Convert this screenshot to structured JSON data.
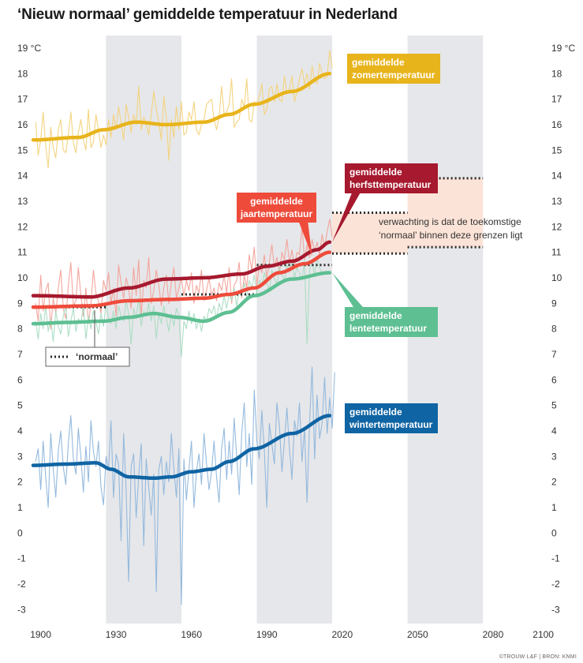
{
  "chart_data": {
    "type": "line",
    "title": "‘Nieuw normaal’ gemiddelde temperatuur in Nederland",
    "credit": "©TROUW L&F | BRON: KNMI",
    "xlim": [
      1897,
      2102
    ],
    "ylim": [
      -3.3,
      19.4
    ],
    "x_ticks": [
      "1900",
      "1930",
      "1960",
      "1990",
      "2020",
      "2050",
      "2080",
      "2100"
    ],
    "x_tick_values": [
      1900,
      1930,
      1960,
      1990,
      2020,
      2050,
      2080,
      2100
    ],
    "y_tick_values": [
      -3,
      -2,
      -1,
      0,
      1,
      2,
      3,
      4,
      5,
      6,
      7,
      8,
      9,
      10,
      11,
      12,
      13,
      14,
      15,
      16,
      17,
      18,
      19
    ],
    "y_ticks": [
      "-3",
      "-2",
      "-1",
      "0",
      "1",
      "2",
      "3",
      "4",
      "5",
      "6",
      "7",
      "8",
      "9",
      "10",
      "11",
      "12",
      "13",
      "14",
      "15",
      "16",
      "17",
      "18",
      "19 °C"
    ],
    "grey_bands": [
      [
        1926,
        1956
      ],
      [
        1986,
        2016
      ],
      [
        2046,
        2076
      ]
    ],
    "series": [
      {
        "name": "gemiddelde zomertemperatuur",
        "label_lines": [
          "gemiddelde",
          "zomertemperatuur"
        ],
        "color": "#e8b41c",
        "light_color": "#f3d27a",
        "smooth_x": [
          1897,
          1915,
          1925,
          1938,
          1950,
          1965,
          1975,
          1985,
          2000,
          2015
        ],
        "smooth_y": [
          15.4,
          15.5,
          15.8,
          16.1,
          16.0,
          16.1,
          16.4,
          16.8,
          17.3,
          18.0
        ],
        "annual_y": [
          16.1,
          14.8,
          15.4,
          16.5,
          15.2,
          14.3,
          15.9,
          15.1,
          14.7,
          15.8,
          16.2,
          15.0,
          14.9,
          15.6,
          16.5,
          15.3,
          14.9,
          15.7,
          16.2,
          15.4,
          15.0,
          16.6,
          15.1,
          15.3,
          16.4,
          15.8,
          15.1,
          15.6,
          15.2,
          16.2,
          15.5,
          16.4,
          15.8,
          16.7,
          16.1,
          15.4,
          16.8,
          16.3,
          15.7,
          16.4,
          16.0,
          17.5,
          15.8,
          16.3,
          16.0,
          15.6,
          16.4,
          17.3,
          16.6,
          16.1,
          15.4,
          17.1,
          16.3,
          14.6,
          16.2,
          15.5,
          16.7,
          15.8,
          16.9,
          15.6,
          15.7,
          16.5,
          16.2,
          16.9,
          15.8,
          15.6,
          16.0,
          16.2,
          16.8,
          16.9,
          17.0,
          16.2,
          15.8,
          16.3,
          17.5,
          16.4,
          16.5,
          16.8,
          17.8,
          15.9,
          16.1,
          16.2,
          17.0,
          16.7,
          17.8,
          16.2,
          16.1,
          16.9,
          16.8,
          17.1,
          17.6,
          16.4,
          16.6,
          17.4,
          17.5,
          16.9,
          17.6,
          17.0,
          16.9,
          17.9,
          17.2,
          17.4,
          17.9,
          16.9,
          17.3,
          17.8,
          18.2,
          17.6,
          18.0,
          17.4,
          18.3,
          17.7,
          17.6,
          18.4,
          18.0,
          17.8,
          17.9,
          18.9,
          18.2
        ]
      },
      {
        "name": "gemiddelde herfsttemperatuur",
        "label_lines": [
          "gemiddelde",
          "herfsttemperatuur"
        ],
        "color": "#a6192e",
        "light_color": "#d48a94",
        "smooth_x": [
          1897,
          1920,
          1935,
          1950,
          1965,
          1980,
          1990,
          2000,
          2010,
          2015
        ],
        "smooth_y": [
          9.3,
          9.25,
          9.6,
          9.95,
          10.0,
          10.15,
          10.45,
          10.65,
          11.1,
          11.4
        ],
        "annual_y": []
      },
      {
        "name": "gemiddelde jaartemperatuur",
        "label_lines": [
          "gemiddelde",
          "jaartemperatuur"
        ],
        "color": "#ee4b3b",
        "light_color": "#f3a198",
        "smooth_x": [
          1897,
          1920,
          1935,
          1950,
          1965,
          1975,
          1985,
          1995,
          2005,
          2015
        ],
        "smooth_y": [
          8.85,
          8.9,
          9.1,
          9.15,
          9.2,
          9.35,
          9.6,
          10.2,
          10.55,
          11.0
        ],
        "annual_y": [
          9.0,
          8.3,
          10.1,
          8.7,
          9.5,
          9.8,
          8.0,
          9.2,
          8.6,
          9.6,
          10.3,
          8.8,
          8.4,
          9.7,
          10.6,
          8.9,
          9.1,
          10.4,
          9.3,
          8.5,
          9.6,
          8.2,
          9.0,
          10.3,
          9.4,
          9.1,
          8.6,
          9.9,
          9.5,
          10.2,
          9.0,
          9.6,
          8.5,
          10.5,
          9.8,
          9.2,
          10.0,
          9.6,
          8.8,
          10.4,
          9.3,
          10.7,
          8.5,
          9.9,
          9.6,
          10.8,
          9.0,
          9.5,
          10.3,
          9.7,
          8.9,
          9.6,
          10.1,
          9.0,
          9.8,
          10.4,
          9.2,
          9.6,
          10.0,
          9.3,
          9.9,
          9.5,
          10.2,
          9.0,
          9.7,
          9.4,
          10.3,
          9.1,
          9.5,
          10.0,
          9.3,
          9.6,
          9.1,
          9.8,
          9.5,
          10.1,
          9.4,
          10.4,
          9.0,
          9.7,
          9.9,
          10.6,
          9.2,
          10.1,
          9.6,
          10.9,
          10.3,
          11.2,
          9.7,
          10.5,
          10.2,
          10.9,
          10.0,
          10.6,
          11.3,
          10.4,
          10.8,
          10.2,
          11.0,
          10.7,
          11.5,
          10.6,
          11.1,
          10.4,
          11.0,
          10.9,
          12.0,
          10.7,
          11.3,
          10.8,
          11.5,
          11.0,
          11.4,
          10.9,
          11.7,
          11.2,
          11.8,
          12.3,
          11.6
        ]
      },
      {
        "name": "gemiddelde lentetemperatuur",
        "label_lines": [
          "gemiddelde",
          "lentetemperatuur"
        ],
        "color": "#5dbf92",
        "light_color": "#a9dcc2",
        "smooth_x": [
          1897,
          1910,
          1925,
          1935,
          1945,
          1955,
          1965,
          1975,
          1985,
          2000,
          2015
        ],
        "smooth_y": [
          8.2,
          8.25,
          8.3,
          8.45,
          8.6,
          8.45,
          8.3,
          8.65,
          9.3,
          9.95,
          10.2
        ],
        "annual_y": [
          8.3,
          7.6,
          8.6,
          8.0,
          8.9,
          7.9,
          8.4,
          7.5,
          8.7,
          8.1,
          7.8,
          8.5,
          8.9,
          7.7,
          8.3,
          8.8,
          7.9,
          8.4,
          8.2,
          8.9,
          7.6,
          8.5,
          8.0,
          8.7,
          8.3,
          7.8,
          8.6,
          8.1,
          9.0,
          8.4,
          8.2,
          8.7,
          8.0,
          8.9,
          8.5,
          8.3,
          9.1,
          8.6,
          7.4,
          8.8,
          8.4,
          9.2,
          8.1,
          8.7,
          8.5,
          9.0,
          8.3,
          8.9,
          7.6,
          8.6,
          8.2,
          8.9,
          8.4,
          7.9,
          8.6,
          8.1,
          8.8,
          8.5,
          6.9,
          8.3,
          8.0,
          8.7,
          8.2,
          8.6,
          8.0,
          8.4,
          7.9,
          8.5,
          8.3,
          8.8,
          8.6,
          8.9,
          8.4,
          9.0,
          8.7,
          9.3,
          8.8,
          9.4,
          9.1,
          9.6,
          8.9,
          9.5,
          9.3,
          9.8,
          9.2,
          9.9,
          9.6,
          10.1,
          9.4,
          9.9,
          9.7,
          10.2,
          9.8,
          9.5,
          10.3,
          10.0,
          9.7,
          10.4,
          10.1,
          9.9,
          10.5,
          10.2,
          10.6,
          10.0,
          10.4,
          10.2,
          9.9,
          10.7,
          7.4,
          10.3,
          10.6,
          10.1,
          10.8,
          10.4,
          10.2
        ]
      },
      {
        "name": "gemiddelde wintertemperatuur",
        "label_lines": [
          "gemiddelde",
          "wintertemperatuur"
        ],
        "color": "#0f64a3",
        "light_color": "#8eb6dc",
        "smooth_x": [
          1897,
          1910,
          1922,
          1928,
          1935,
          1945,
          1952,
          1960,
          1968,
          1975,
          1985,
          2000,
          2015
        ],
        "smooth_y": [
          2.65,
          2.7,
          2.75,
          2.5,
          2.2,
          2.15,
          2.2,
          2.4,
          2.5,
          2.8,
          3.3,
          3.9,
          4.6
        ],
        "annual_y": [
          2.8,
          3.3,
          1.7,
          3.6,
          2.2,
          1.0,
          3.9,
          2.5,
          1.4,
          3.2,
          4.0,
          2.6,
          1.9,
          3.5,
          4.6,
          2.9,
          2.3,
          4.1,
          3.0,
          1.6,
          3.4,
          2.0,
          4.4,
          3.2,
          2.6,
          3.6,
          1.8,
          1.1,
          3.0,
          2.5,
          4.4,
          1.4,
          3.1,
          2.7,
          -0.3,
          3.9,
          1.7,
          -1.9,
          2.6,
          3.1,
          0.6,
          2.2,
          3.5,
          -0.5,
          2.9,
          1.8,
          0.7,
          2.3,
          -2.3,
          2.5,
          3.0,
          1.5,
          2.8,
          2.0,
          3.9,
          2.5,
          1.4,
          3.3,
          -2.8,
          2.9,
          1.3,
          2.5,
          3.6,
          1.0,
          2.4,
          3.1,
          1.9,
          3.9,
          2.7,
          1.7,
          2.4,
          3.6,
          2.2,
          1.2,
          3.3,
          4.1,
          2.1,
          3.6,
          2.3,
          4.5,
          3.0,
          1.5,
          3.9,
          5.1,
          2.6,
          3.9,
          1.9,
          5.6,
          3.6,
          2.9,
          4.8,
          3.2,
          1.0,
          4.3,
          3.5,
          2.7,
          5.1,
          4.2,
          2.4,
          3.6,
          4.9,
          3.3,
          2.1,
          4.4,
          3.8,
          5.1,
          2.8,
          4.1,
          1.2,
          4.3,
          6.5,
          2.9,
          5.4,
          3.7,
          4.3,
          6.1,
          3.9,
          5.3,
          4.1,
          6.3
        ]
      }
    ],
    "normaal": {
      "legend_label": "‘normaal’",
      "segments": [
        {
          "x": [
            1897,
            1926
          ],
          "y": 8.85
        },
        {
          "x": [
            1956,
            1986
          ],
          "y": 9.35
        },
        {
          "x": [
            1986,
            2016
          ],
          "y": 10.5
        }
      ]
    },
    "forecast": {
      "text_lines": [
        "verwachting is dat de toekomstige",
        "‘normaal’ binnen deze grenzen ligt"
      ],
      "boxes": [
        {
          "x": [
            2016,
            2046
          ],
          "y": [
            10.95,
            12.55
          ]
        },
        {
          "x": [
            2046,
            2076
          ],
          "y": [
            11.2,
            13.9
          ]
        }
      ]
    }
  }
}
